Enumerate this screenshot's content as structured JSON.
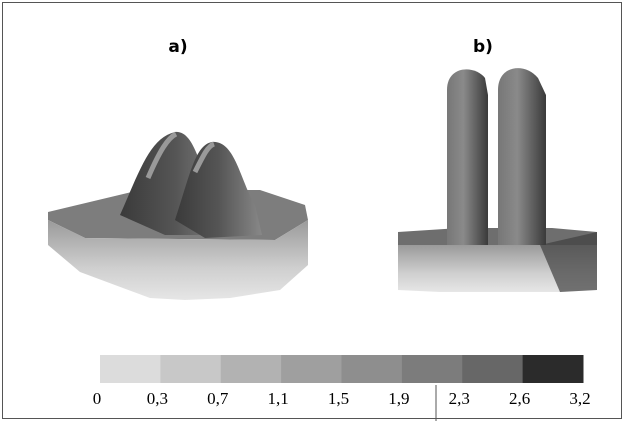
{
  "panels": [
    {
      "label": "a)"
    },
    {
      "label": "b)"
    }
  ],
  "colorbar": {
    "colors": [
      "#dcdcdc",
      "#c8c8c8",
      "#b2b2b2",
      "#9f9f9f",
      "#8e8e8e",
      "#7c7c7c",
      "#676767",
      "#2b2b2b"
    ],
    "ticks": [
      "0",
      "0,3",
      "0,7",
      "1,1",
      "1,5",
      "1,9",
      "2,3",
      "2,6",
      "3,2"
    ]
  }
}
